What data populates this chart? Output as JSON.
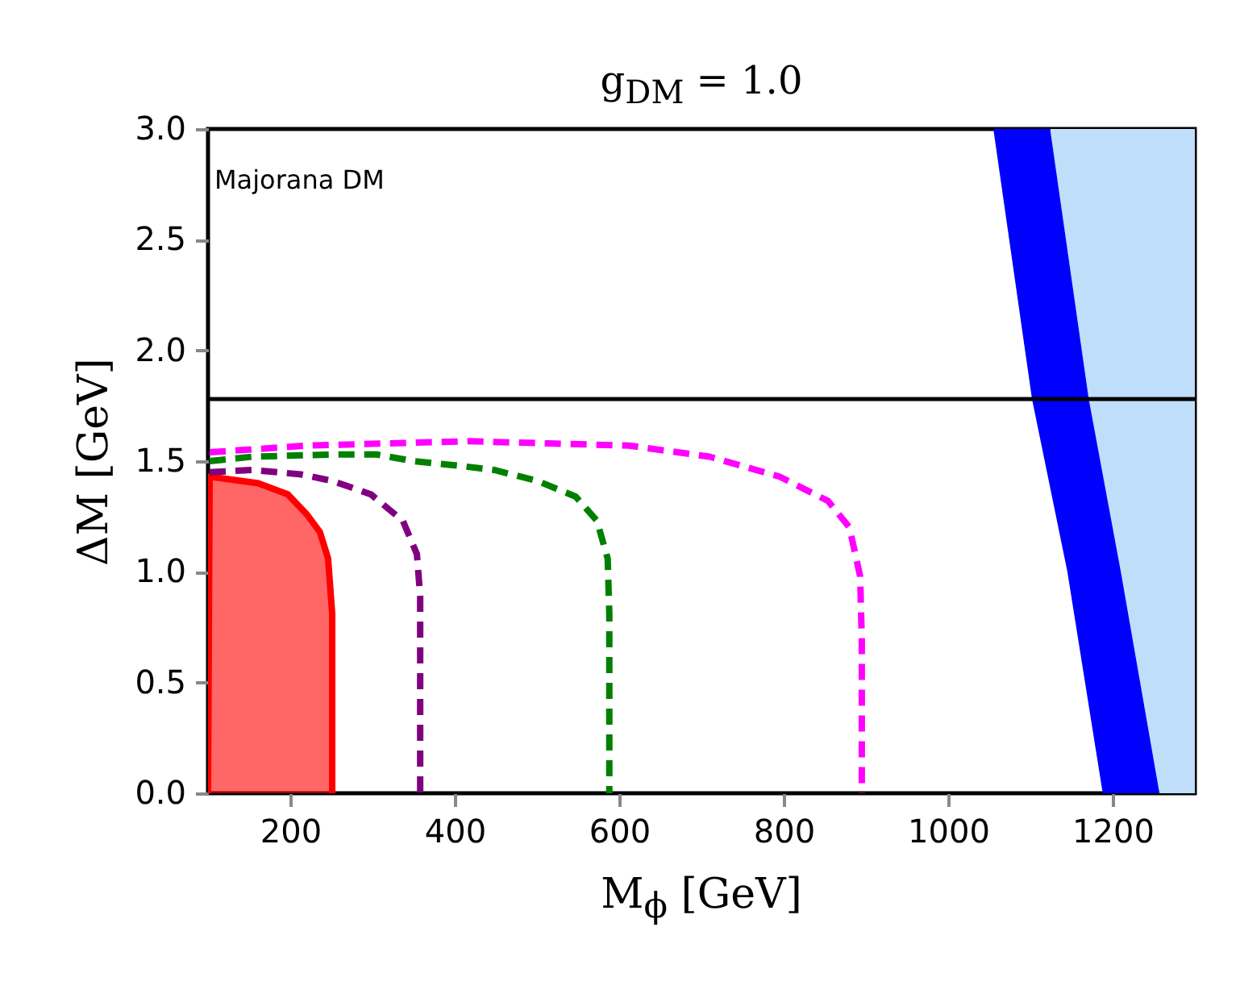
{
  "chart_data": {
    "type": "line",
    "title": "g$_{DM}$ = 1.0",
    "xlabel": "M$_{ϕ}$ [GeV]",
    "ylabel": "ΔM [GeV]",
    "annotations": [
      "Majorana DM"
    ],
    "xlim": [
      100,
      1300
    ],
    "xticks": [
      200,
      400,
      600,
      800,
      1000,
      1200
    ],
    "ylim": [
      0,
      3.0
    ],
    "yticks": [
      {
        "value": 0,
        "label": "0.0"
      },
      0.5,
      {
        "value": 1,
        "label": "1.0"
      },
      1.5,
      {
        "value": 2,
        "label": "2.0"
      },
      2.5,
      {
        "value": 3,
        "label": "3.0"
      }
    ],
    "grid": false,
    "legend": false,
    "ref_lines": [
      {
        "axis": "y",
        "value": 1.78,
        "color": "#000000"
      }
    ],
    "series": [
      {
        "type": "area",
        "color": "#bfdefa",
        "x": [
          1124,
          1171,
          1210,
          1257,
          1300,
          1300
        ],
        "values": [
          3.0,
          1.78,
          1.0,
          0,
          0,
          3.0
        ]
      },
      {
        "type": "area",
        "color": "#0000ff",
        "x": [
          1055,
          1102,
          1145,
          1188,
          1257,
          1210,
          1171,
          1124
        ],
        "values": [
          3.0,
          1.78,
          1.0,
          0,
          0,
          1.0,
          1.78,
          3.0
        ]
      },
      {
        "type": "area",
        "color": "#ff0000",
        "line_style": "solid",
        "x": [
          100,
          102,
          122,
          161,
          197,
          220,
          236,
          246,
          251,
          251
        ],
        "values": [
          0,
          1.43,
          1.42,
          1.4,
          1.35,
          1.26,
          1.18,
          1.06,
          0.81,
          0
        ]
      },
      {
        "type": "line",
        "color": "#800080",
        "line_style": "dashed",
        "x": [
          102,
          154,
          213,
          252,
          298,
          337,
          354,
          358,
          358
        ],
        "values": [
          1.45,
          1.46,
          1.44,
          1.41,
          1.35,
          1.23,
          1.08,
          0.89,
          0
        ]
      },
      {
        "type": "line",
        "color": "#008000",
        "line_style": "dashed",
        "x": [
          102,
          154,
          252,
          305,
          350,
          403,
          448,
          501,
          547,
          573,
          586,
          588,
          588
        ],
        "values": [
          1.5,
          1.52,
          1.53,
          1.53,
          1.5,
          1.48,
          1.46,
          1.41,
          1.34,
          1.23,
          1.06,
          0.81,
          0
        ]
      },
      {
        "type": "line",
        "color": "#ff00ff",
        "line_style": "dashed",
        "x": [
          102,
          220,
          416,
          514,
          612,
          710,
          795,
          854,
          880,
          893,
          895,
          895
        ],
        "values": [
          1.54,
          1.57,
          1.59,
          1.58,
          1.57,
          1.52,
          1.43,
          1.32,
          1.2,
          0.98,
          0.69,
          0
        ]
      }
    ]
  }
}
